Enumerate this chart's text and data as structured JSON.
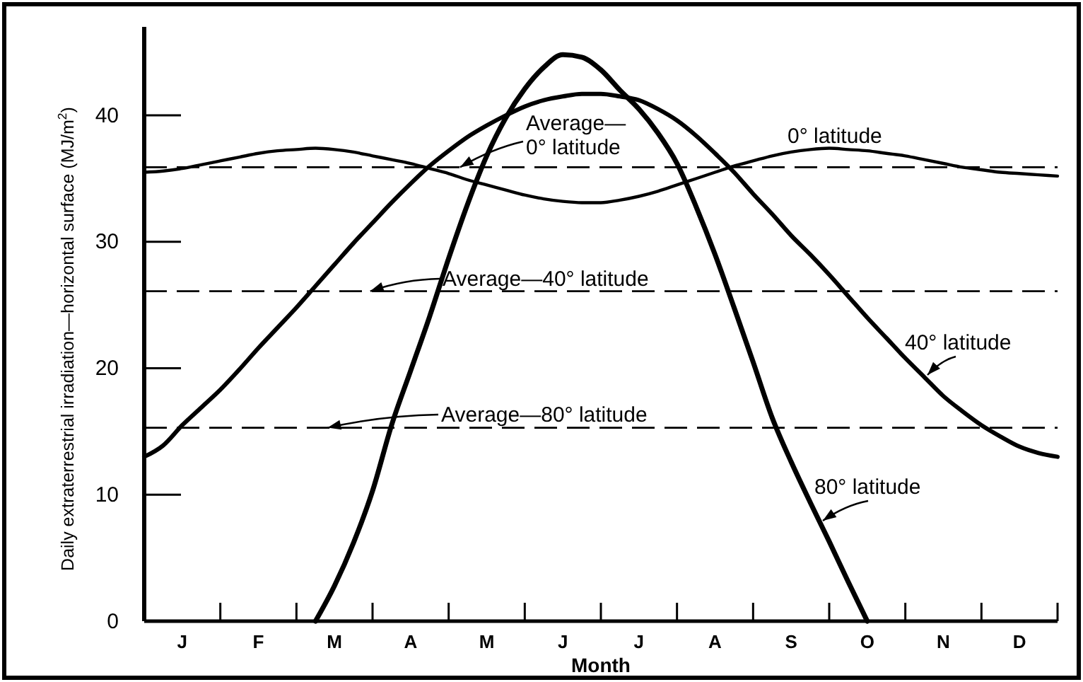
{
  "chart_data": {
    "type": "line",
    "xlabel": "Month",
    "ylabel": "Daily extraterrestrial irradiation—horizontal surface (MJ/m$^{2}$)",
    "categories": [
      null,
      null,
      "J",
      null,
      null,
      null,
      "F",
      null,
      null,
      null,
      "M",
      null,
      null,
      null,
      "A",
      null,
      null,
      null,
      "M",
      null,
      null,
      null,
      "J",
      null,
      null,
      null,
      "J",
      null,
      null,
      null,
      "A",
      null,
      null,
      null,
      "S",
      null,
      null,
      null,
      "O",
      null,
      null,
      null,
      "N",
      null,
      null,
      null,
      "D",
      null,
      null
    ],
    "ylim": [
      0,
      47
    ],
    "yticks": [
      0,
      10,
      20,
      30,
      40
    ],
    "grid": false,
    "series": [
      {
        "name": "0° latitude",
        "color": "#000000",
        "values": [
          35.5,
          35.6,
          35.8,
          36.1,
          36.4,
          36.7,
          37.0,
          37.2,
          37.3,
          37.4,
          37.3,
          37.1,
          36.8,
          36.5,
          36.2,
          35.8,
          35.4,
          34.9,
          34.5,
          34.1,
          33.7,
          33.4,
          33.2,
          33.1,
          33.1,
          33.3,
          33.6,
          34.0,
          34.5,
          35.0,
          35.5,
          36.0,
          36.4,
          36.8,
          37.1,
          37.3,
          37.4,
          37.3,
          37.2,
          37.0,
          36.8,
          36.5,
          36.2,
          35.9,
          35.7,
          35.5,
          35.4,
          35.3,
          35.2
        ]
      },
      {
        "name": "40° latitude",
        "color": "#000000",
        "values": [
          13.0,
          13.9,
          15.5,
          16.9,
          18.3,
          19.9,
          21.6,
          23.2,
          24.8,
          26.5,
          28.2,
          29.9,
          31.5,
          33.1,
          34.6,
          36.0,
          37.2,
          38.3,
          39.2,
          40.0,
          40.7,
          41.2,
          41.5,
          41.7,
          41.7,
          41.5,
          41.2,
          40.5,
          39.6,
          38.4,
          37.0,
          35.5,
          33.8,
          32.2,
          30.5,
          29.0,
          27.4,
          25.7,
          24.0,
          22.4,
          20.8,
          19.3,
          17.8,
          16.6,
          15.5,
          14.6,
          13.8,
          13.3,
          13.0
        ]
      },
      {
        "name": "80° latitude",
        "color": "#000000",
        "values": [
          null,
          null,
          null,
          null,
          null,
          null,
          null,
          null,
          null,
          0,
          2.8,
          6.2,
          10.3,
          15.5,
          19.8,
          24.1,
          28.7,
          33.0,
          36.8,
          39.8,
          42.1,
          43.8,
          44.8,
          44.6,
          43.6,
          42.0,
          40.5,
          38.6,
          36.2,
          32.8,
          29.0,
          24.8,
          20.5,
          16.1,
          12.6,
          9.4,
          6.3,
          3.1,
          0,
          null,
          null,
          null,
          null,
          null,
          null,
          null,
          null,
          null,
          null
        ]
      }
    ],
    "ref_lines": [
      {
        "axis": "y",
        "value": 35.9,
        "label": "Average— 0° latitude",
        "color": "#000000",
        "line_style": "dashed"
      },
      {
        "axis": "y",
        "value": 26.1,
        "label": "Average—40° latitude",
        "color": "#000000",
        "line_style": "dashed"
      },
      {
        "axis": "y",
        "value": 15.3,
        "label": "Average—80° latitude",
        "color": "#000000",
        "line_style": "dashed"
      }
    ]
  }
}
